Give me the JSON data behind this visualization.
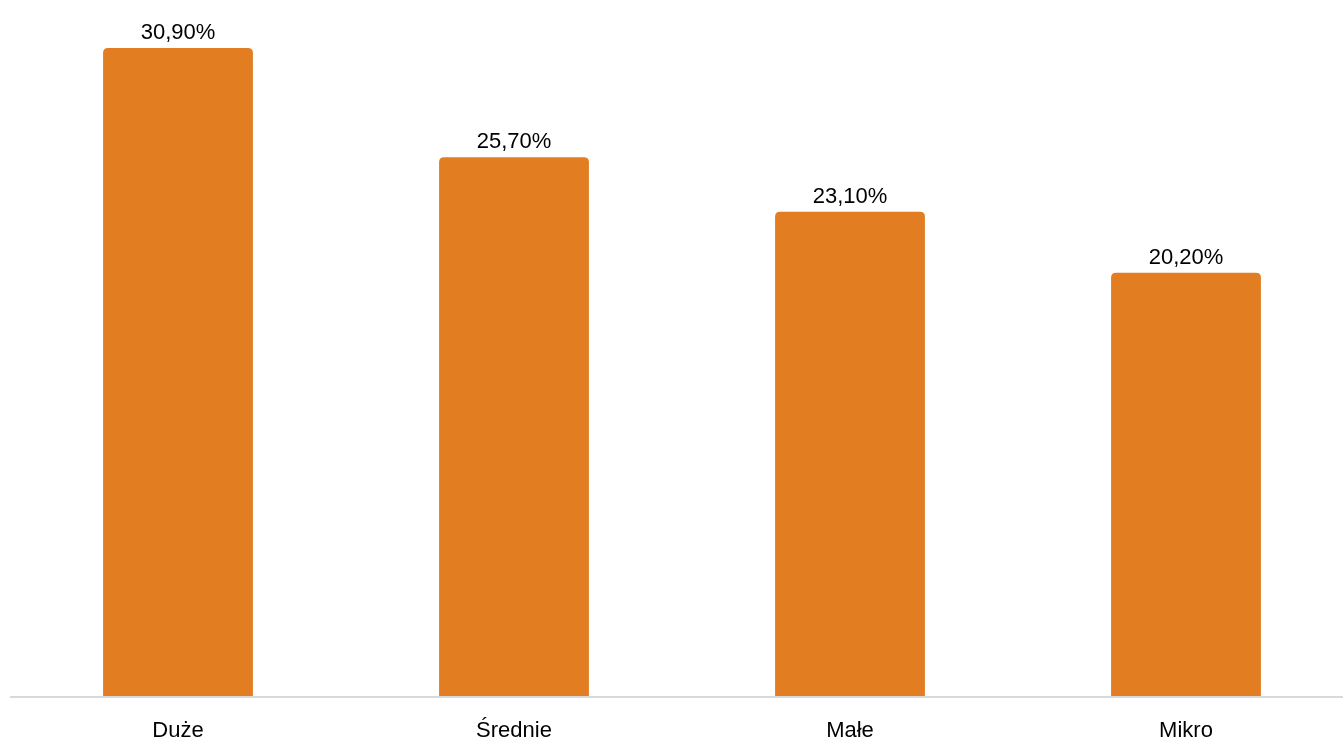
{
  "chart_data": {
    "type": "bar",
    "categories": [
      "Duże",
      "Średnie",
      "Małe",
      "Mikro"
    ],
    "values": [
      30.9,
      25.7,
      23.1,
      20.2
    ],
    "color": "#e37d21",
    "value_labels": [
      "30,90%",
      "25,70%",
      "23,10%",
      "20,20%"
    ]
  }
}
